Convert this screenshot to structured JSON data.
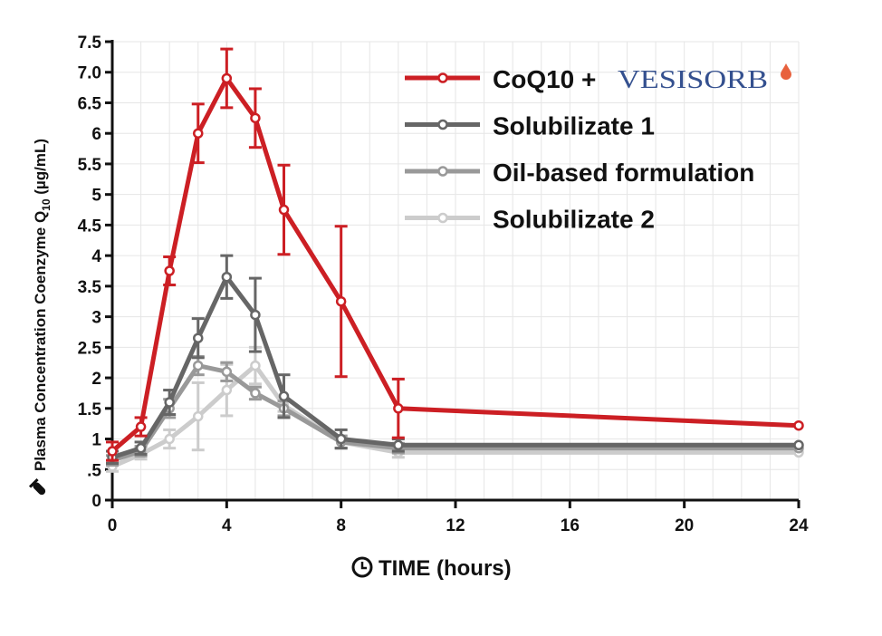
{
  "chart_data": {
    "type": "line",
    "title": "",
    "xlabel": "TIME (hours)",
    "ylabel_main": "Plasma Concentration Coenzyme Q",
    "ylabel_sub": "10",
    "ylabel_unit": " (µg/mL)",
    "xlim": [
      0,
      24
    ],
    "ylim": [
      0,
      7.5
    ],
    "xticks": [
      0,
      4,
      8,
      12,
      16,
      20,
      24
    ],
    "yticks": [
      {
        "v": 0,
        "label": "0"
      },
      {
        "v": 0.5,
        "label": ".5"
      },
      {
        "v": 1,
        "label": "1"
      },
      {
        "v": 1.5,
        "label": "1.5"
      },
      {
        "v": 2,
        "label": "2"
      },
      {
        "v": 2.5,
        "label": "2.5"
      },
      {
        "v": 3,
        "label": "3"
      },
      {
        "v": 3.5,
        "label": "3.5"
      },
      {
        "v": 4,
        "label": "4"
      },
      {
        "v": 4.5,
        "label": "4.5"
      },
      {
        "v": 5,
        "label": "5"
      },
      {
        "v": 5.5,
        "label": "5.5"
      },
      {
        "v": 6,
        "label": "6"
      },
      {
        "v": 6.5,
        "label": "6.5"
      },
      {
        "v": 7,
        "label": "7.0"
      },
      {
        "v": 7.5,
        "label": "7.5"
      }
    ],
    "grid": true,
    "legend_position": "top-right",
    "x": [
      0,
      1,
      2,
      3,
      4,
      5,
      6,
      8,
      10,
      24
    ],
    "series": [
      {
        "name": "Solubilizate 2",
        "color": "#cccccc",
        "values": [
          0.55,
          0.75,
          1.0,
          1.37,
          1.8,
          2.2,
          1.55,
          0.95,
          0.78,
          0.78
        ],
        "errors": [
          0.08,
          0.08,
          0.15,
          0.55,
          0.42,
          0.3,
          0.1,
          0.1,
          0.08,
          0
        ]
      },
      {
        "name": "Oil-based formulation",
        "color": "#999999",
        "values": [
          0.65,
          0.8,
          1.5,
          2.2,
          2.1,
          1.75,
          1.5,
          0.95,
          0.85,
          0.85
        ],
        "errors": [
          0.08,
          0.08,
          0.15,
          0.15,
          0.15,
          0.1,
          0.12,
          0.1,
          0.08,
          0
        ]
      },
      {
        "name": "Solubilizate 1",
        "color": "#666666",
        "values": [
          0.7,
          0.85,
          1.6,
          2.65,
          3.65,
          3.03,
          1.7,
          1.0,
          0.9,
          0.9
        ],
        "errors": [
          0.1,
          0.1,
          0.2,
          0.32,
          0.35,
          0.6,
          0.35,
          0.15,
          0.1,
          0
        ]
      },
      {
        "name": "CoQ10 + ",
        "brand": "VESISORB",
        "color": "#cc1f24",
        "values": [
          0.8,
          1.2,
          3.75,
          6.0,
          6.9,
          6.25,
          4.75,
          3.25,
          1.5,
          1.22
        ],
        "errors": [
          0.15,
          0.15,
          0.23,
          0.48,
          0.48,
          0.48,
          0.73,
          1.23,
          0.48,
          0
        ]
      }
    ],
    "legend_order": [
      3,
      2,
      1,
      0
    ]
  }
}
